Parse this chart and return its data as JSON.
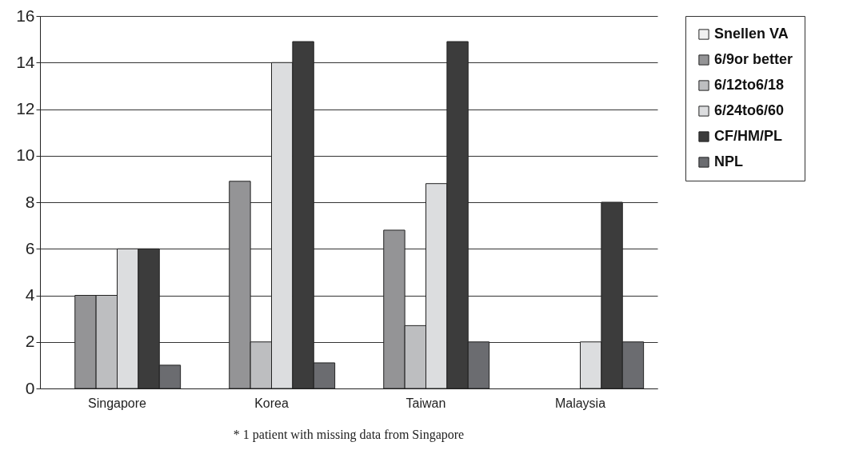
{
  "chart_data": {
    "type": "bar",
    "categories": [
      "Singapore",
      "Korea",
      "Taiwan",
      "Malaysia"
    ],
    "series": [
      {
        "name": "Snellen VA",
        "color": "#f0f0f0",
        "values": [
          null,
          null,
          null,
          null
        ]
      },
      {
        "name": "6/9or better",
        "color": "#949496",
        "values": [
          4,
          8.9,
          6.8,
          null
        ]
      },
      {
        "name": "6/12to6/18",
        "color": "#bdbec0",
        "values": [
          4,
          2,
          2.7,
          null
        ]
      },
      {
        "name": "6/24to6/60",
        "color": "#dcdddf",
        "values": [
          6,
          14,
          8.8,
          2
        ]
      },
      {
        "name": "CF/HM/PL",
        "color": "#3c3c3c",
        "values": [
          6,
          14.9,
          14.9,
          8
        ]
      },
      {
        "name": "NPL",
        "color": "#6b6c70",
        "values": [
          1,
          1.1,
          2,
          2
        ]
      }
    ],
    "ylim": [
      0,
      16
    ],
    "yticks": [
      0,
      2,
      4,
      6,
      8,
      10,
      12,
      14,
      16
    ],
    "grid": "y",
    "legend": "right",
    "annotations": [
      "* 1 patient with missing data from Singapore"
    ]
  }
}
